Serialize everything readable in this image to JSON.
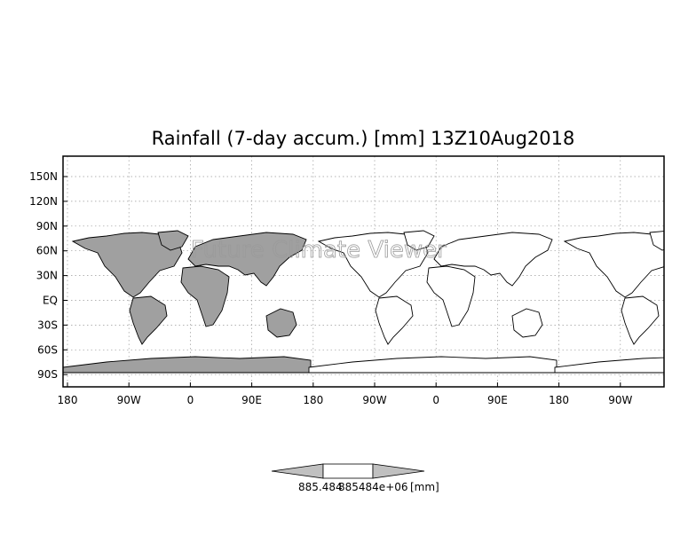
{
  "title": "Rainfall (7-day accum.) [mm] 13Z10Aug2018",
  "watermark": "Future Climate Viewer",
  "map": {
    "y_ticks": [
      "150N",
      "120N",
      "90N",
      "60N",
      "30N",
      "EQ",
      "30S",
      "60S",
      "90S"
    ],
    "x_ticks": [
      "180",
      "90W",
      "0",
      "90E",
      "180",
      "90W",
      "0",
      "90E",
      "180",
      "90W"
    ],
    "grid": true,
    "land_fill_color": "#a0a0a0",
    "coast_color": "#000000"
  },
  "colorbar": {
    "labels": [
      "885.484",
      "885484e+06",
      "[mm]"
    ],
    "colors": [
      "#c0c0c0",
      "#ffffff",
      "#c0c0c0"
    ]
  }
}
